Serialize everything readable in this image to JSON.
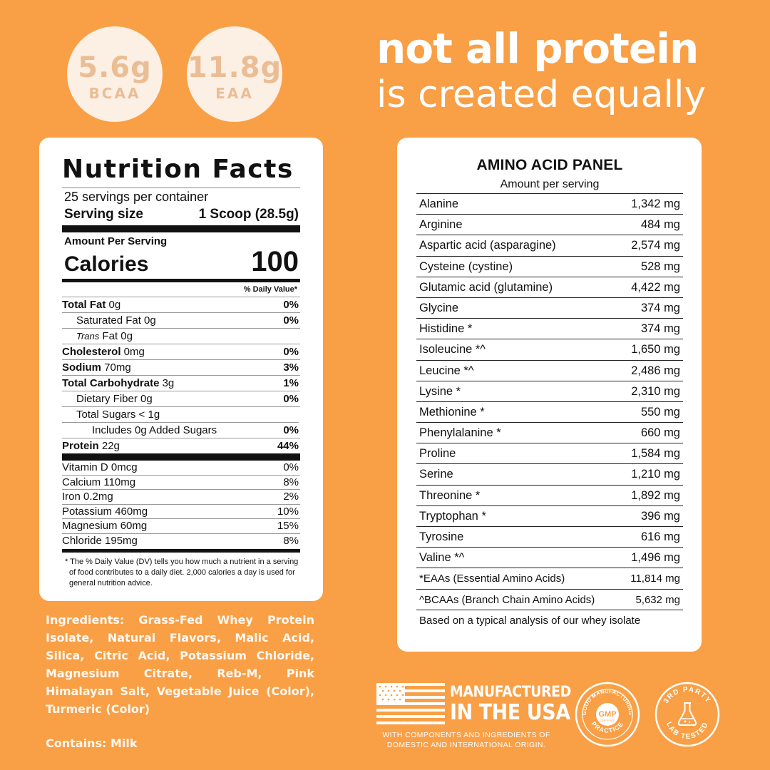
{
  "badges": [
    {
      "value": "5.6g",
      "label": "BCAA"
    },
    {
      "value": "11.8g",
      "label": "EAA"
    }
  ],
  "headline": {
    "line1": "not all protein",
    "line2": "is created equally"
  },
  "nutrition": {
    "title": "Nutrition Facts",
    "servings": "25 servings per container",
    "serving_size_label": "Serving size",
    "serving_size_value": "1 Scoop (28.5g)",
    "amount_per_serving": "Amount Per Serving",
    "calories_label": "Calories",
    "calories_value": "100",
    "dv_header": "% Daily Value*",
    "rows": [
      {
        "bold": "Total Fat",
        "rest": " 0g",
        "pct": "0%"
      },
      {
        "bold": "",
        "rest": "Saturated Fat 0g",
        "pct": "0%"
      },
      {
        "italic": "Trans",
        "rest": " Fat 0g",
        "pct": ""
      },
      {
        "bold": "Cholesterol",
        "rest": " 0mg",
        "pct": "0%"
      },
      {
        "bold": "Sodium",
        "rest": " 70mg",
        "pct": "3%"
      },
      {
        "bold": "Total Carbohydrate",
        "rest": " 3g",
        "pct": "1%"
      },
      {
        "bold": "",
        "rest": "Dietary Fiber 0g",
        "pct": "0%"
      },
      {
        "bold": "",
        "rest": "Total Sugars < 1g",
        "pct": ""
      },
      {
        "bold": "",
        "rest": "Includes 0g Added Sugars",
        "pct": "0%"
      },
      {
        "bold": "Protein",
        "rest": " 22g",
        "pct": "44%"
      }
    ],
    "vitamins": [
      {
        "name": "Vitamin D 0mcg",
        "pct": "0%"
      },
      {
        "name": "Calcium 110mg",
        "pct": "8%"
      },
      {
        "name": "Iron 0.2mg",
        "pct": "2%"
      },
      {
        "name": "Potassium 460mg",
        "pct": "10%"
      },
      {
        "name": "Magnesium 60mg",
        "pct": "15%"
      },
      {
        "name": "Chloride 195mg",
        "pct": "8%"
      }
    ],
    "footnote": "* The % Daily Value (DV) tells you how much a nutrient in a serving of food contributes to a daily diet. 2,000 calories a day is used for general nutrition advice."
  },
  "amino": {
    "title": "AMINO ACID PANEL",
    "subtitle": "Amount per serving",
    "rows": [
      {
        "name": "Alanine",
        "value": "1,342 mg"
      },
      {
        "name": "Arginine",
        "value": "484 mg"
      },
      {
        "name": "Aspartic acid (asparagine)",
        "value": "2,574 mg"
      },
      {
        "name": "Cysteine (cystine)",
        "value": "528 mg"
      },
      {
        "name": "Glutamic acid (glutamine)",
        "value": "4,422 mg"
      },
      {
        "name": "Glycine",
        "value": "374 mg"
      },
      {
        "name": "Histidine *",
        "value": "374 mg"
      },
      {
        "name": "Isoleucine *^",
        "value": "1,650 mg"
      },
      {
        "name": "Leucine *^",
        "value": "2,486 mg"
      },
      {
        "name": "Lysine *",
        "value": "2,310 mg"
      },
      {
        "name": "Methionine *",
        "value": "550 mg"
      },
      {
        "name": "Phenylalanine *",
        "value": "660 mg"
      },
      {
        "name": "Proline",
        "value": "1,584 mg"
      },
      {
        "name": "Serine",
        "value": "1,210 mg"
      },
      {
        "name": "Threonine *",
        "value": "1,892 mg"
      },
      {
        "name": "Tryptophan *",
        "value": "396 mg"
      },
      {
        "name": "Tyrosine",
        "value": "616 mg"
      },
      {
        "name": "Valine *^",
        "value": "1,496 mg"
      }
    ],
    "totals": [
      {
        "name": "*EAAs (Essential Amino Acids)",
        "value": "11,814 mg"
      },
      {
        "name": "^BCAAs (Branch Chain Amino Acids)",
        "value": "5,632 mg"
      }
    ],
    "note": "Based on a typical analysis of our whey isolate"
  },
  "ingredients": "Ingredients: Grass-Fed Whey Protein Isolate, Natural Flavors, Malic Acid, Silica, Citric Acid, Potassium Chloride, Magnesium Citrate, Reb-M, Pink Himalayan Salt, Vegetable Juice (Color), Turmeric (Color)",
  "contains": "Contains: Milk",
  "usa": {
    "line1": "MANUFACTURED",
    "line2": "IN THE USA",
    "fine": "WITH COMPONENTS AND INGREDIENTS OF DOMESTIC AND INTERNATIONAL ORIGIN."
  },
  "seals": {
    "gmp_top": "GOOD MANUFACTURING",
    "gmp_center": "GMP",
    "gmp_small": "CERTIFIED",
    "gmp_bottom": "PRACTICE",
    "lab_top": "3RD PARTY",
    "lab_bottom": "LAB TESTED"
  },
  "colors": {
    "background": "#f99f45",
    "badge": "#fcefe4",
    "badge_text": "#ebbd94",
    "card": "#ffffff",
    "text": "#111111"
  }
}
